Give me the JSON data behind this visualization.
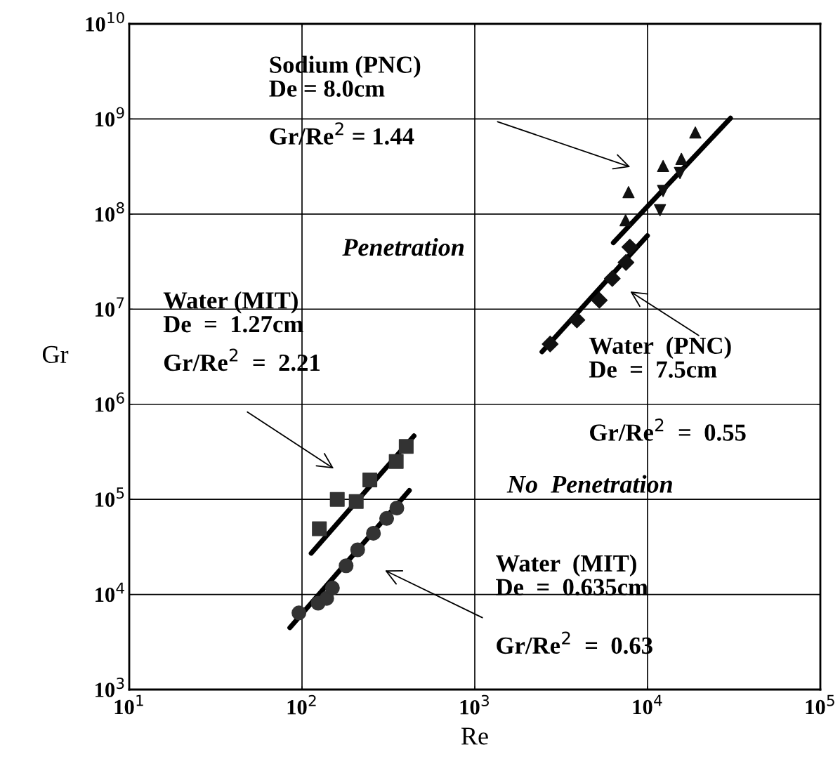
{
  "chart_data": {
    "type": "scatter",
    "xlabel": "Re",
    "ylabel": "Gr",
    "log": "xy",
    "grid": true,
    "legend": false,
    "xlim": [
      10,
      100000
    ],
    "ylim": [
      1000,
      10000000000
    ],
    "xticks": [
      {
        "value": 10,
        "label": "10$^{1}$"
      },
      {
        "value": 100,
        "label": "10$^{2}$"
      },
      {
        "value": 1000,
        "label": "10$^{3}$"
      },
      {
        "value": 10000,
        "label": "10$^{4}$"
      },
      {
        "value": 100000,
        "label": "10$^{5}$"
      }
    ],
    "yticks": [
      {
        "value": 1000,
        "label": "10$^{3}$"
      },
      {
        "value": 10000,
        "label": "10$^{4}$"
      },
      {
        "value": 100000,
        "label": "10$^{5}$"
      },
      {
        "value": 1000000,
        "label": "10$^{6}$"
      },
      {
        "value": 10000000,
        "label": "10$^{7}$"
      },
      {
        "value": 100000000,
        "label": "10$^{8}$"
      },
      {
        "value": 1000000000,
        "label": "10$^{9}$"
      },
      {
        "value": 10000000000,
        "label": "10$^{10}$"
      }
    ],
    "series": [
      {
        "marker": "square",
        "color": "#333333",
        "x": [
          126,
          160,
          206,
          247,
          351,
          401
        ],
        "values": [
          49000,
          100000,
          95000,
          160000,
          250000,
          360000
        ]
      },
      {
        "marker": "circle",
        "color": "#333333",
        "x": [
          96,
          124,
          139,
          150,
          180,
          210,
          259,
          309,
          354
        ],
        "values": [
          6400,
          8100,
          9100,
          11700,
          20000,
          29500,
          44000,
          63000,
          81000
        ]
      },
      {
        "marker": "triangle",
        "color": "#111111",
        "x": [
          18900,
          15700,
          12300,
          7760,
          7460
        ],
        "values": [
          720000000,
          380000000,
          320000000,
          170000000,
          86000000
        ]
      },
      {
        "marker": "triangle_down",
        "color": "#111111",
        "x": [
          15400,
          12300,
          11800
        ],
        "values": [
          270000000,
          175000000,
          110000000
        ]
      },
      {
        "marker": "diamond",
        "color": "#111111",
        "x": [
          7900,
          7500,
          6250,
          5260,
          3900,
          2730
        ],
        "values": [
          45000000,
          31000000,
          21000000,
          12400000,
          7700000,
          4300000
        ]
      },
      {
        "type": "line",
        "color": "#000000",
        "x": [
          113,
          445
        ],
        "values": [
          27100,
          465000
        ]
      },
      {
        "type": "line",
        "color": "#000000",
        "x": [
          85,
          418
        ],
        "values": [
          4470,
          124000
        ]
      },
      {
        "type": "line",
        "color": "#000000",
        "x": [
          6340,
          30200
        ],
        "values": [
          50000000,
          1020000000
        ]
      },
      {
        "type": "line",
        "color": "#000000",
        "x": [
          2450,
          9980
        ],
        "values": [
          3560000,
          59300000
        ]
      }
    ],
    "annotations": [
      "Sodium (PNC)\nDe = 8.0cm",
      "Water (MIT)\nDe  =  1.27cm",
      "Water  (PNC)\nDe  =  7.5cm",
      "Water  (MIT)\nDe  =  0.635cm",
      "Penetration",
      "No  Penetration",
      "Gr/Re$^{2}$ = 1.44",
      "Gr/Re$^{2}$  =  2.21",
      "Gr/Re$^{2}$  =  0.55",
      "Gr/Re$^{2}$  =  0.63"
    ]
  }
}
